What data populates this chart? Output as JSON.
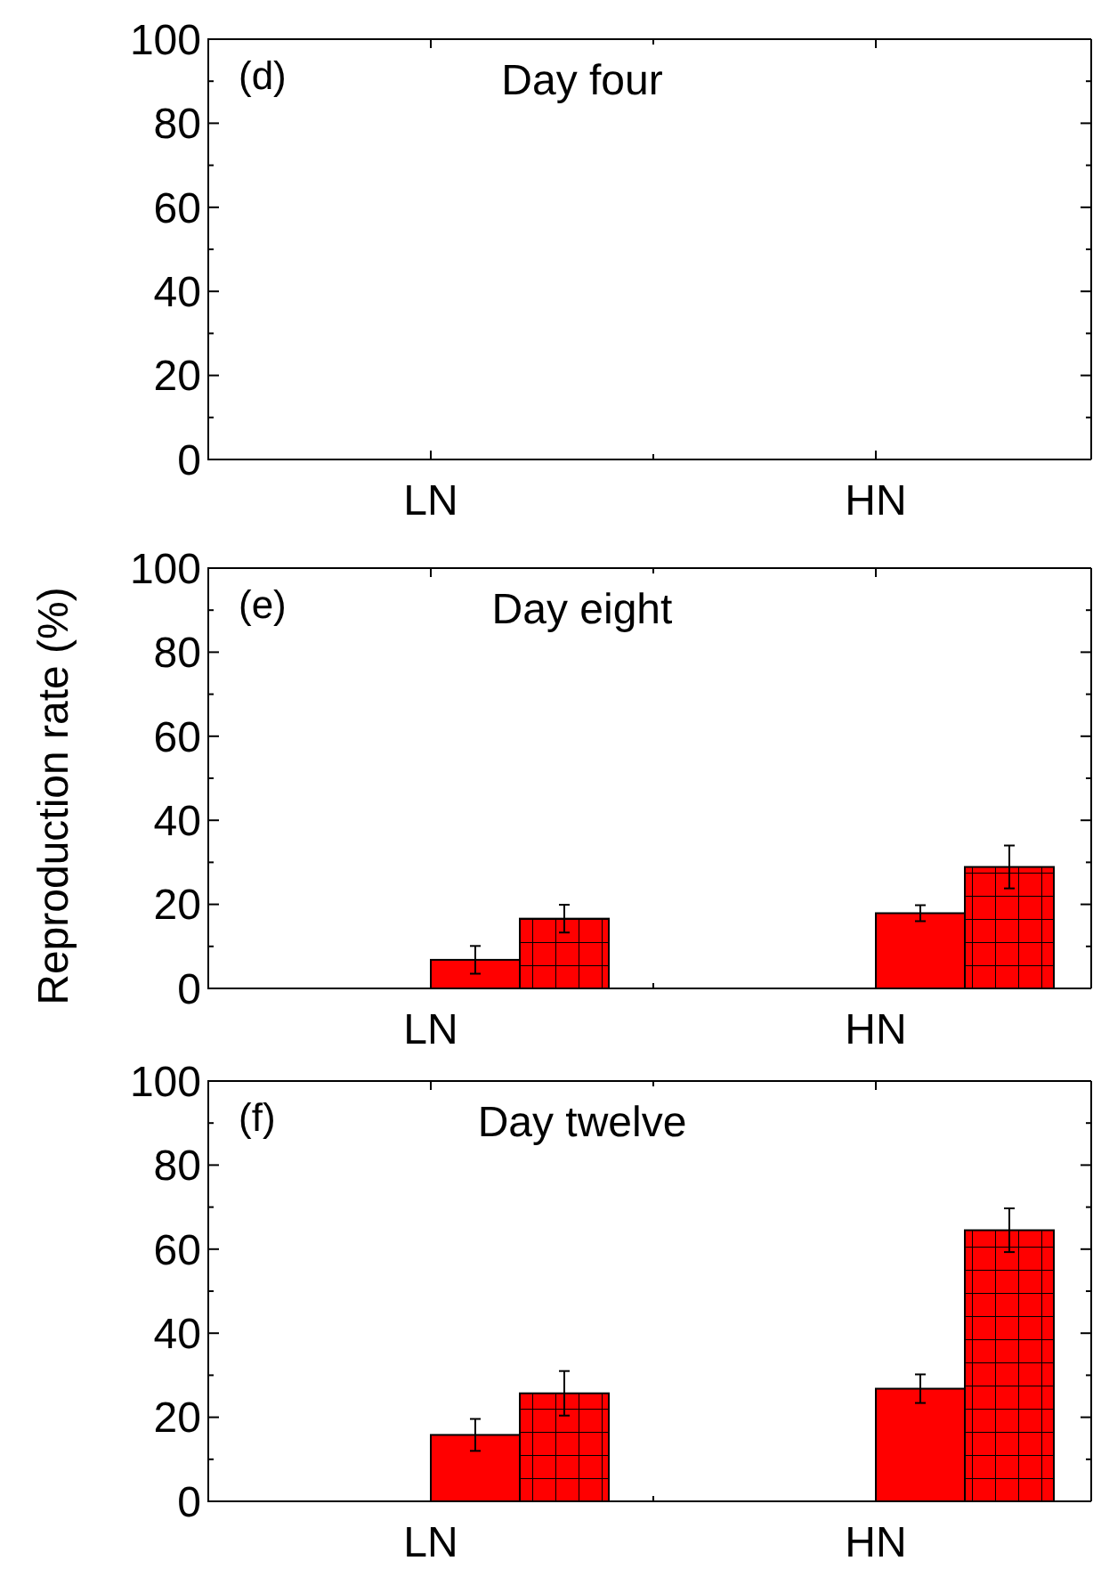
{
  "chart_data": [
    {
      "type": "bar",
      "title": "Day four",
      "annotations": [
        "(d)"
      ],
      "categories": [
        "LN",
        "HN"
      ],
      "series": [
        {
          "color": "#ff0000",
          "values": [
            0,
            0
          ]
        },
        {
          "color": "#ff0000",
          "values": [
            0,
            0
          ]
        }
      ],
      "ylim": [
        0,
        100
      ],
      "yticks": [
        0,
        {
          "value": 10,
          "label": null
        },
        20,
        {
          "value": 30,
          "label": null
        },
        40,
        {
          "value": 50,
          "label": null
        },
        60,
        {
          "value": 70,
          "label": null
        },
        80,
        {
          "value": 90,
          "label": null
        },
        100
      ],
      "grid": false
    },
    {
      "type": "bar",
      "title": "Day eight",
      "ylabel": "Reproduction rate (%)",
      "annotations": [
        "(e)"
      ],
      "categories": [
        "LN",
        "HN"
      ],
      "series": [
        {
          "color": "#ff0000",
          "values": [
            6.8,
            17.9
          ],
          "errors": [
            3.3,
            1.9
          ]
        },
        {
          "color": "#ff0000",
          "values": [
            16.6,
            28.9
          ],
          "errors": [
            3.3,
            5.1
          ]
        }
      ],
      "ylim": [
        0,
        100
      ],
      "yticks": [
        0,
        {
          "value": 10,
          "label": null
        },
        20,
        {
          "value": 30,
          "label": null
        },
        40,
        {
          "value": 50,
          "label": null
        },
        60,
        {
          "value": 70,
          "label": null
        },
        80,
        {
          "value": 90,
          "label": null
        },
        100
      ],
      "grid": false
    },
    {
      "type": "bar",
      "title": "Day twelve",
      "annotations": [
        "(f)"
      ],
      "categories": [
        "LN",
        "HN"
      ],
      "series": [
        {
          "color": "#ff0000",
          "values": [
            15.8,
            26.8
          ],
          "errors": [
            3.8,
            3.4
          ]
        },
        {
          "color": "#ff0000",
          "values": [
            25.7,
            64.5
          ],
          "errors": [
            5.3,
            5.2
          ]
        }
      ],
      "ylim": [
        0,
        100
      ],
      "yticks": [
        0,
        {
          "value": 10,
          "label": null
        },
        20,
        {
          "value": 30,
          "label": null
        },
        40,
        {
          "value": 50,
          "label": null
        },
        60,
        {
          "value": 70,
          "label": null
        },
        80,
        {
          "value": 90,
          "label": null
        },
        100
      ],
      "grid": false
    }
  ]
}
